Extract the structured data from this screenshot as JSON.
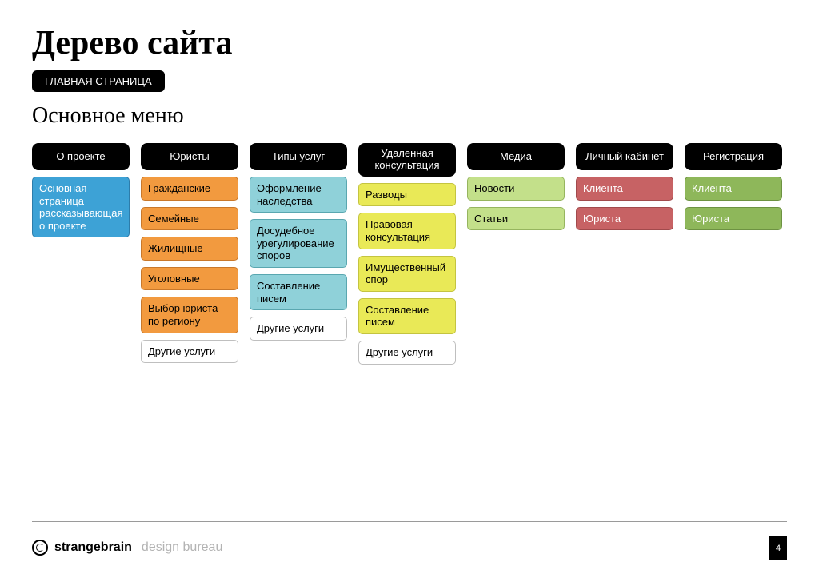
{
  "title": "Дерево сайта",
  "home_pill": "ГЛАВНАЯ СТРАНИЦА",
  "subtitle": "Основное меню",
  "colors": {
    "black": "#000000",
    "white": "#ffffff",
    "blue": "#3da2d6",
    "orange": "#f29a3f",
    "teal": "#8fd1d9",
    "yellow": "#e9e957",
    "green": "#c3e08a",
    "red": "#c76264",
    "olive": "#8eb75a",
    "gray_border": "#bfbfbf"
  },
  "columns": [
    {
      "header": "О проекте",
      "items": [
        {
          "label": "Основная страница рассказывающая о проекте",
          "style": "blue"
        }
      ]
    },
    {
      "header": "Юристы",
      "items": [
        {
          "label": "Гражданские",
          "style": "orange"
        },
        {
          "label": "Семейные",
          "style": "orange"
        },
        {
          "label": "Жилищные",
          "style": "orange"
        },
        {
          "label": "Уголовные",
          "style": "orange"
        },
        {
          "label": "Выбор юриста по региону",
          "style": "orange"
        },
        {
          "label": "Другие услуги",
          "style": "white"
        }
      ]
    },
    {
      "header": "Типы услуг",
      "items": [
        {
          "label": "Оформление наследства",
          "style": "teal"
        },
        {
          "label": "Досудебное урегулирование споров",
          "style": "teal"
        },
        {
          "label": "Составление писем",
          "style": "teal"
        },
        {
          "label": "Другие услуги",
          "style": "white"
        }
      ]
    },
    {
      "header": "Удаленная консультация",
      "items": [
        {
          "label": "Разводы",
          "style": "yellow"
        },
        {
          "label": "Правовая консультация",
          "style": "yellow"
        },
        {
          "label": "Имущественный спор",
          "style": "yellow"
        },
        {
          "label": "Составление писем",
          "style": "yellow"
        },
        {
          "label": "Другие услуги",
          "style": "white"
        }
      ]
    },
    {
      "header": "Медиа",
      "items": [
        {
          "label": "Новости",
          "style": "green"
        },
        {
          "label": "Статьи",
          "style": "green"
        }
      ]
    },
    {
      "header": "Личный кабинет",
      "items": [
        {
          "label": "Клиента",
          "style": "red"
        },
        {
          "label": "Юриста",
          "style": "red"
        }
      ]
    },
    {
      "header": "Регистрация",
      "items": [
        {
          "label": "Клиента",
          "style": "olive"
        },
        {
          "label": "Юриста",
          "style": "olive"
        }
      ]
    }
  ],
  "footer": {
    "brand_strong": "strangebrain",
    "brand_light": "design bureau",
    "page_number": "4"
  }
}
